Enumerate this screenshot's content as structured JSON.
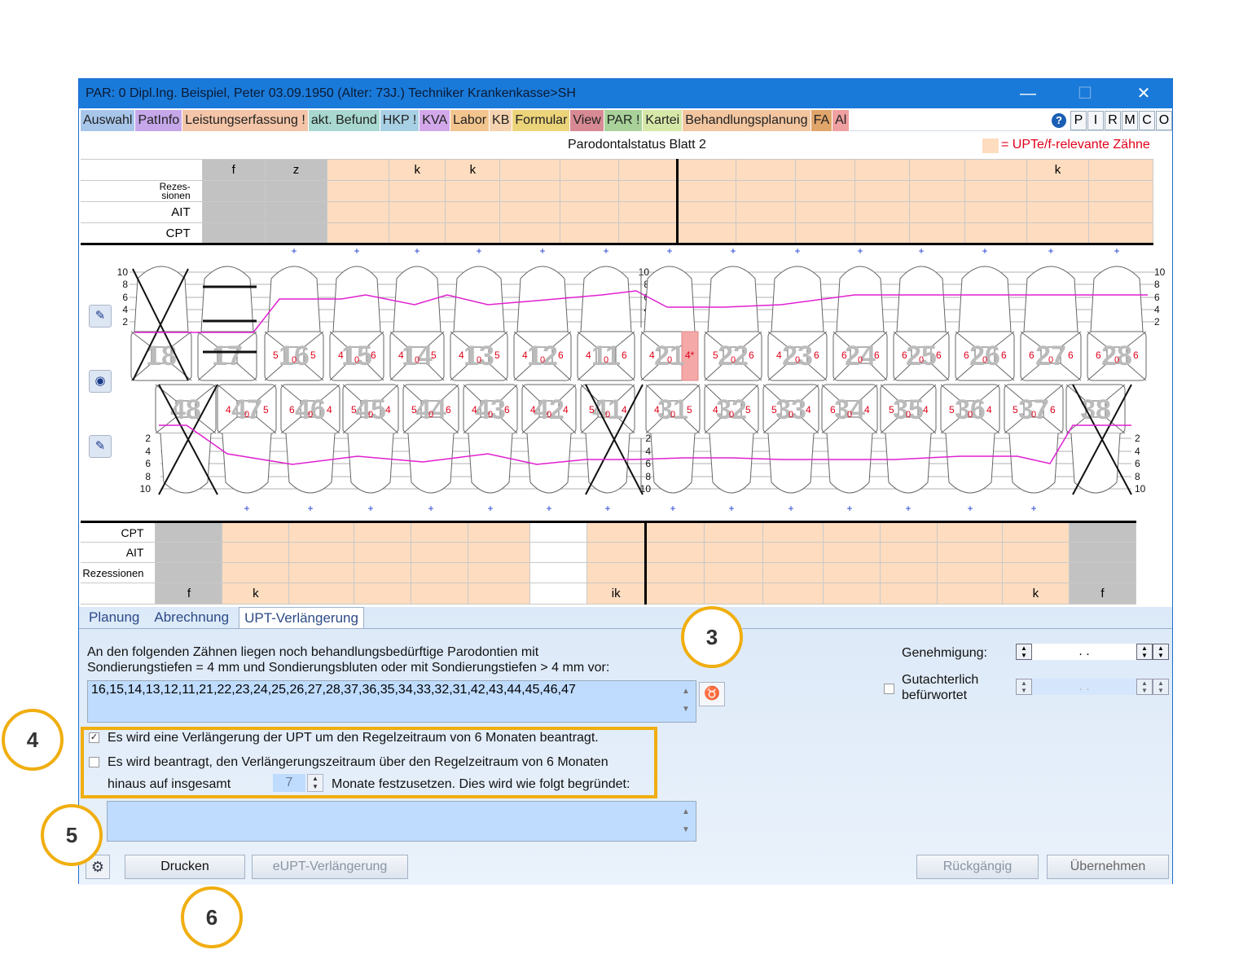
{
  "window": {
    "title": "PAR: 0  Dipl.Ing. Beispiel, Peter  03.09.1950 (Alter: 73J.)  Techniker Krankenkasse>SH",
    "minimize": "—",
    "maximize": "☐",
    "close": "✕"
  },
  "menu": [
    {
      "label": "Auswahl",
      "color": "#a7c6ea"
    },
    {
      "label": "PatInfo",
      "color": "#c6a7ea"
    },
    {
      "label": "Leistungserfassung !",
      "color": "#f4c5a8"
    },
    {
      "label": "akt. Befund",
      "color": "#a8d8d0"
    },
    {
      "label": "HKP !",
      "color": "#a8d0e4"
    },
    {
      "label": "KVA",
      "color": "#d2a8ea"
    },
    {
      "label": "Labor",
      "color": "#f2c48e"
    },
    {
      "label": "KB",
      "color": "#f5d3b0"
    },
    {
      "label": "Formular",
      "color": "#ecd47a"
    },
    {
      "label": "View",
      "color": "#d88a94"
    },
    {
      "label": "PAR !",
      "color": "#a8d29a"
    },
    {
      "label": "Kartei",
      "color": "#d6e8a8"
    },
    {
      "label": "Behandlungsplanung",
      "color": "#f3c6a0"
    },
    {
      "label": "FA",
      "color": "#e0a56a"
    },
    {
      "label": "Al",
      "color": "#f0a0a0"
    }
  ],
  "menu_letters": [
    "P",
    "I",
    "R",
    "M",
    "C",
    "O"
  ],
  "chart_title": "Parodontalstatus Blatt 2",
  "legend": "= UPTe/f-relevante Zähne",
  "upper_grid": {
    "top_labels": [
      "f",
      "z",
      "",
      "k",
      "k",
      "",
      "",
      "",
      "",
      "",
      "",
      "",
      "",
      "",
      "k",
      ""
    ],
    "rows": [
      "Rezes-\nsionen",
      "AIT",
      "CPT"
    ]
  },
  "lower_grid": {
    "rows": [
      "CPT",
      "AIT",
      "Rezessionen"
    ],
    "bottom_labels": [
      "f",
      "k",
      "",
      "",
      "",
      "",
      "",
      "ik",
      "",
      "",
      "",
      "",
      "",
      "",
      "k",
      "f"
    ]
  },
  "upper_teeth": [
    {
      "num": "18",
      "vals": [
        "",
        "",
        ""
      ]
    },
    {
      "num": "17",
      "vals": [
        "",
        "",
        ""
      ]
    },
    {
      "num": "16",
      "vals": [
        "5",
        "0",
        "5"
      ]
    },
    {
      "num": "15",
      "vals": [
        "4",
        "0",
        "6"
      ]
    },
    {
      "num": "14",
      "vals": [
        "4",
        "0",
        "5"
      ]
    },
    {
      "num": "13",
      "vals": [
        "4",
        "0",
        "5"
      ]
    },
    {
      "num": "12",
      "vals": [
        "4",
        "0",
        "6"
      ]
    },
    {
      "num": "11",
      "vals": [
        "4",
        "0",
        "6"
      ]
    },
    {
      "num": "21",
      "vals": [
        "4",
        "0",
        "4*"
      ]
    },
    {
      "num": "22",
      "vals": [
        "5",
        "0",
        "6"
      ]
    },
    {
      "num": "23",
      "vals": [
        "4",
        "0",
        "6"
      ]
    },
    {
      "num": "24",
      "vals": [
        "6",
        "0",
        "6"
      ]
    },
    {
      "num": "25",
      "vals": [
        "6",
        "0",
        "6"
      ]
    },
    {
      "num": "26",
      "vals": [
        "6",
        "0",
        "6"
      ]
    },
    {
      "num": "27",
      "vals": [
        "6",
        "0",
        "6"
      ]
    },
    {
      "num": "28",
      "vals": [
        "6",
        "0",
        "6"
      ]
    }
  ],
  "lower_teeth": [
    {
      "num": "48",
      "vals": [
        "",
        "",
        ""
      ]
    },
    {
      "num": "47",
      "vals": [
        "4",
        "0",
        "5"
      ]
    },
    {
      "num": "46",
      "vals": [
        "6",
        "0",
        "4"
      ]
    },
    {
      "num": "45",
      "vals": [
        "5",
        "0",
        "4"
      ]
    },
    {
      "num": "44",
      "vals": [
        "5",
        "0",
        "6"
      ]
    },
    {
      "num": "43",
      "vals": [
        "4",
        "0",
        "6"
      ]
    },
    {
      "num": "42",
      "vals": [
        "4",
        "0",
        "4"
      ]
    },
    {
      "num": "41",
      "vals": [
        "5",
        "0",
        "4"
      ]
    },
    {
      "num": "31",
      "vals": [
        "4",
        "0",
        "5"
      ]
    },
    {
      "num": "32",
      "vals": [
        "4",
        "0",
        "5"
      ]
    },
    {
      "num": "33",
      "vals": [
        "5",
        "0",
        "4"
      ]
    },
    {
      "num": "34",
      "vals": [
        "6",
        "0",
        "4"
      ]
    },
    {
      "num": "35",
      "vals": [
        "5",
        "0",
        "4"
      ]
    },
    {
      "num": "36",
      "vals": [
        "5",
        "0",
        "4"
      ]
    },
    {
      "num": "37",
      "vals": [
        "5",
        "0",
        "6"
      ]
    },
    {
      "num": "38",
      "vals": [
        "",
        "",
        ""
      ]
    }
  ],
  "scale_labels": [
    "10",
    "8",
    "6",
    "4",
    "2"
  ],
  "tabs": [
    "Planung",
    "Abrechnung",
    "UPT-Verlängerung"
  ],
  "info_line1": "An den folgenden Zähnen liegen noch behandlungsbedürftige Parodontien mit",
  "info_line2": "Sondierungstiefen = 4 mm und Sondierungsbluten oder mit Sondierungstiefen > 4 mm vor:",
  "teeth_list": "16,15,14,13,12,11,21,22,23,24,25,26,27,28,37,36,35,34,33,32,31,42,43,44,45,46,47",
  "check1_label": "Es wird eine Verlängerung der UPT um den Regelzeitraum von 6 Monaten beantragt.",
  "check1_checked": true,
  "check2_line1": "Es wird beantragt, den Verlängerungszeitraum über den Regelzeitraum von 6 Monaten",
  "check2_line2a": "hinaus auf insgesamt",
  "check2_months": "7",
  "check2_line2b": "Monate festzusetzen. Dies wird wie folgt begründet:",
  "check2_checked": false,
  "genehmigung_label": "Genehmigung:",
  "genehmigung_value": ".  .",
  "gutachter_line1": "Gutachterlich",
  "gutachter_line2": "befürwortet",
  "gutachter_value": ".  .",
  "buttons": {
    "drucken": "Drucken",
    "eupt": "eUPT-Verlängerung",
    "rueckgaengig": "Rückgängig",
    "uebernehmen": "Übernehmen"
  },
  "callouts": [
    "3",
    "4",
    "5",
    "6"
  ]
}
